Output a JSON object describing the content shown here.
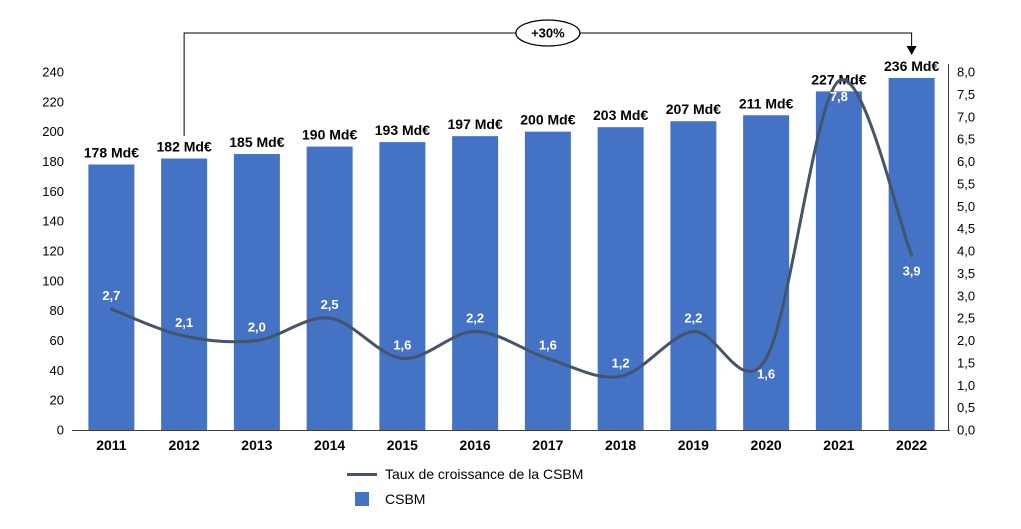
{
  "chart_data": {
    "type": "bar",
    "subtype": "combo-bar-line",
    "categories": [
      "2011",
      "2012",
      "2013",
      "2014",
      "2015",
      "2016",
      "2017",
      "2018",
      "2019",
      "2020",
      "2021",
      "2022"
    ],
    "series": [
      {
        "name": "CSBM",
        "type": "bar",
        "axis": "left",
        "color": "#4472C4",
        "values": [
          178,
          182,
          185,
          190,
          193,
          197,
          200,
          203,
          207,
          211,
          227,
          236
        ],
        "labels": [
          "178 Md€",
          "182 Md€",
          "185 Md€",
          "190 Md€",
          "193 Md€",
          "197 Md€",
          "200 Md€",
          "203 Md€",
          "207 Md€",
          "211 Md€",
          "227 Md€",
          "236 Md€"
        ]
      },
      {
        "name": "Taux de croissance de la CSBM",
        "type": "line",
        "axis": "right",
        "color": "#44546A",
        "values": [
          2.7,
          2.1,
          2.0,
          2.5,
          1.6,
          2.2,
          1.6,
          1.2,
          2.2,
          1.6,
          7.8,
          3.9
        ],
        "labels": [
          "2,7",
          "2,1",
          "2,0",
          "2,5",
          "1,6",
          "2,2",
          "1,6",
          "1,2",
          "2,2",
          "1,6",
          "7,8",
          "3,9"
        ],
        "label_side": [
          "above",
          "above",
          "above",
          "above",
          "above",
          "above",
          "above",
          "above",
          "above",
          "below",
          "below",
          "below"
        ],
        "label_color": "#FFFFFF"
      }
    ],
    "left_axis": {
      "min": 0,
      "max": 240,
      "step": 20,
      "tick_labels": [
        "0",
        "20",
        "40",
        "60",
        "80",
        "100",
        "120",
        "140",
        "160",
        "180",
        "200",
        "220",
        "240"
      ]
    },
    "right_axis": {
      "min": 0,
      "max": 8,
      "step": 0.5,
      "tick_labels": [
        "0,0",
        "0,5",
        "1,0",
        "1,5",
        "2,0",
        "2,5",
        "3,0",
        "3,5",
        "4,0",
        "4,5",
        "5,0",
        "5,5",
        "6,0",
        "6,5",
        "7,0",
        "7,5",
        "8,0"
      ]
    },
    "annotation": {
      "label": "+30%",
      "from_category": "2012",
      "to_category": "2022"
    },
    "legend_position": "bottom",
    "grid": false,
    "legend": [
      {
        "label": "Taux de croissance de la CSBM",
        "marker": "line",
        "color": "#44546A"
      },
      {
        "label": "CSBM",
        "marker": "square",
        "color": "#4472C4"
      }
    ]
  }
}
